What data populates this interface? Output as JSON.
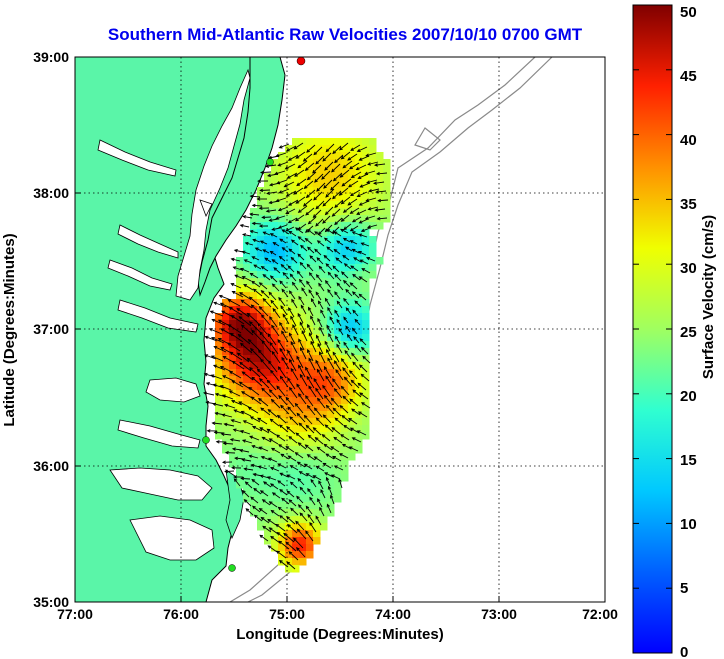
{
  "title": "Southern Mid-Atlantic Raw Velocities 2007/10/10 0700 GMT",
  "axes": {
    "xlabel": "Longitude (Degrees:Minutes)",
    "ylabel": "Latitude (Degrees:Minutes)",
    "xticks": [
      "77:00",
      "76:00",
      "75:00",
      "74:00",
      "73:00",
      "72:00"
    ],
    "yticks": [
      "39:00",
      "38:00",
      "37:00",
      "36:00",
      "35:00"
    ],
    "xlim_deg_west": [
      77,
      72
    ],
    "ylim_deg_north": [
      35,
      39
    ],
    "grid": "dotted"
  },
  "colorbar": {
    "label": "Surface Velocity (cm/s)",
    "ticks": [
      "0",
      "5",
      "10",
      "15",
      "20",
      "25",
      "30",
      "35",
      "40",
      "45",
      "50"
    ],
    "range": [
      0,
      50
    ],
    "colormap": "jet"
  },
  "colors": {
    "land": "#5af5a8",
    "coast": "#000000",
    "bathymetry": "#8a8a8a",
    "title": "#0000ee",
    "site_marker_green": "#22dd22",
    "site_marker_red": "#ee0000"
  }
}
